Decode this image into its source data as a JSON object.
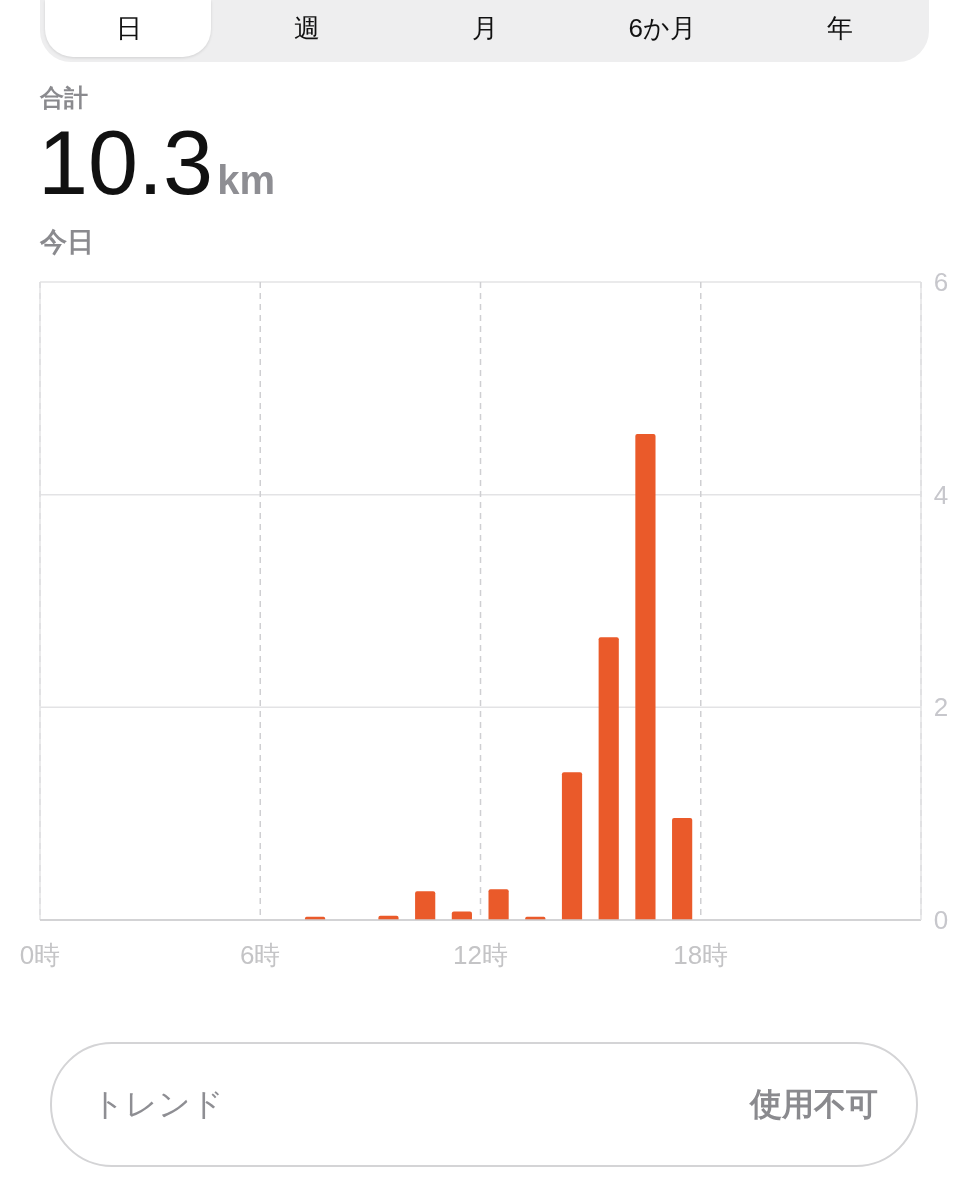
{
  "chart_data": {
    "type": "bar",
    "title": "10.3km",
    "annotations": [
      "日",
      "週",
      "月",
      "6か月",
      "年",
      "合計",
      "今日",
      "トレンド",
      "使用不可"
    ],
    "x": [
      7.5,
      9.5,
      10.5,
      11.5,
      12.5,
      13.5,
      14.5,
      15.5,
      16.5,
      17.5
    ],
    "values": [
      0.03,
      0.04,
      0.27,
      0.08,
      0.29,
      0.03,
      1.39,
      2.66,
      4.57,
      0.96
    ],
    "color": "#ea5a2a",
    "xlim": [
      0,
      24
    ],
    "xticks": [
      {
        "value": 0,
        "label": "0時"
      },
      {
        "value": 6,
        "label": "6時"
      },
      {
        "value": 12,
        "label": "12時"
      },
      {
        "value": 18,
        "label": "18時"
      }
    ],
    "ylim": [
      0,
      6
    ],
    "yticks": [
      0,
      2,
      4,
      6
    ],
    "grid": true
  }
}
